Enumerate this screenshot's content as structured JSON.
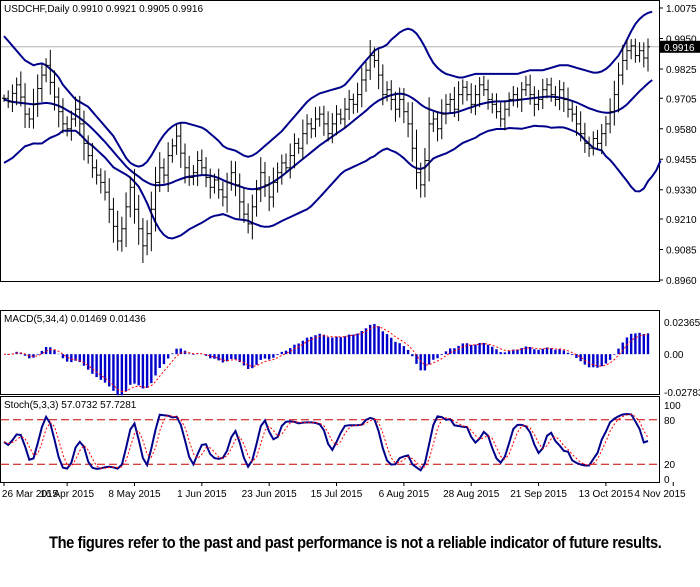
{
  "disclaimer": "The figures refer to the past and past performance is not a reliable indicator of future results.",
  "colors": {
    "bars": "#000000",
    "bands": "#00008B",
    "macd_hist": "#0000CC",
    "signal": "#FF0000",
    "grid_dash": "#CC0000",
    "current_price_bg": "#000000"
  },
  "chart_data": [
    {
      "type": "ohlc",
      "panel": "main",
      "title": "USDCHF,Daily  0.9910 0.9921 0.9905 0.9916",
      "current_price_label": "0.9916",
      "current_price": 0.9916,
      "ylim": [
        0.896,
        1.0075
      ],
      "y_ticks": [
        "1.0075",
        "0.9950",
        "0.9825",
        "0.9705",
        "0.9580",
        "0.9455",
        "0.9330",
        "0.9210",
        "0.9085",
        "0.8960"
      ],
      "y_tick_values": [
        1.0075,
        0.995,
        0.9825,
        0.9705,
        0.958,
        0.9455,
        0.933,
        0.921,
        0.9085,
        0.896
      ],
      "x_labels": [
        "26 Mar 2015",
        "16 Apr 2015",
        "8 May 2015",
        "1 Jun 2015",
        "23 Jun 2015",
        "15 Jul 2015",
        "6 Aug 2015",
        "28 Aug 2015",
        "21 Sep 2015",
        "13 Oct 2015",
        "4 Nov 2015"
      ],
      "x_label_index": [
        0,
        15,
        31,
        47,
        63,
        79,
        95,
        111,
        127,
        143,
        159
      ],
      "close": [
        0.9705,
        0.969,
        0.9725,
        0.976,
        0.971,
        0.964,
        0.962,
        0.968,
        0.9745,
        0.98,
        0.984,
        0.977,
        0.971,
        0.965,
        0.96,
        0.958,
        0.962,
        0.966,
        0.96,
        0.952,
        0.947,
        0.942,
        0.939,
        0.936,
        0.932,
        0.925,
        0.918,
        0.912,
        0.917,
        0.926,
        0.934,
        0.925,
        0.917,
        0.91,
        0.915,
        0.925,
        0.936,
        0.942,
        0.939,
        0.947,
        0.951,
        0.955,
        0.948,
        0.942,
        0.938,
        0.94,
        0.945,
        0.942,
        0.938,
        0.934,
        0.937,
        0.933,
        0.93,
        0.936,
        0.94,
        0.935,
        0.928,
        0.923,
        0.919,
        0.926,
        0.933,
        0.94,
        0.935,
        0.93,
        0.936,
        0.94,
        0.944,
        0.942,
        0.947,
        0.952,
        0.95,
        0.956,
        0.96,
        0.958,
        0.962,
        0.964,
        0.96,
        0.956,
        0.96,
        0.964,
        0.962,
        0.966,
        0.97,
        0.968,
        0.972,
        0.978,
        0.982,
        0.988,
        0.986,
        0.98,
        0.972,
        0.974,
        0.97,
        0.966,
        0.97,
        0.965,
        0.96,
        0.95,
        0.94,
        0.935,
        0.945,
        0.96,
        0.962,
        0.958,
        0.964,
        0.968,
        0.97,
        0.966,
        0.972,
        0.975,
        0.972,
        0.968,
        0.972,
        0.976,
        0.974,
        0.97,
        0.968,
        0.965,
        0.962,
        0.966,
        0.97,
        0.972,
        0.97,
        0.974,
        0.976,
        0.972,
        0.968,
        0.97,
        0.974,
        0.976,
        0.972,
        0.97,
        0.974,
        0.97,
        0.966,
        0.964,
        0.96,
        0.956,
        0.952,
        0.95,
        0.954,
        0.952,
        0.956,
        0.96,
        0.965,
        0.972,
        0.98,
        0.986,
        0.99,
        0.992,
        0.988,
        0.99,
        0.987,
        0.9916
      ],
      "bands_upper": [
        0.996,
        0.994,
        0.992,
        0.99,
        0.988,
        0.986,
        0.985,
        0.984,
        0.9845,
        0.9848,
        0.984,
        0.9825,
        0.981,
        0.979,
        0.976,
        0.974,
        0.972,
        0.97,
        0.969,
        0.968,
        0.967,
        0.965,
        0.963,
        0.961,
        0.959,
        0.957,
        0.955,
        0.952,
        0.949,
        0.946,
        0.944,
        0.943,
        0.9425,
        0.943,
        0.9445,
        0.947,
        0.95,
        0.953,
        0.9555,
        0.9575,
        0.959,
        0.96,
        0.9605,
        0.9605,
        0.96,
        0.9595,
        0.959,
        0.9585,
        0.9575,
        0.956,
        0.9545,
        0.953,
        0.951,
        0.95,
        0.9495,
        0.949,
        0.948,
        0.947,
        0.9465,
        0.947,
        0.948,
        0.9495,
        0.951,
        0.9525,
        0.954,
        0.9555,
        0.957,
        0.959,
        0.961,
        0.963,
        0.965,
        0.967,
        0.969,
        0.9705,
        0.9715,
        0.9725,
        0.973,
        0.9735,
        0.974,
        0.9745,
        0.975,
        0.976,
        0.978,
        0.98,
        0.982,
        0.984,
        0.986,
        0.988,
        0.99,
        0.991,
        0.9915,
        0.9925,
        0.9945,
        0.996,
        0.9975,
        0.9985,
        0.999,
        0.9985,
        0.997,
        0.9945,
        0.9915,
        0.988,
        0.985,
        0.983,
        0.9815,
        0.9805,
        0.98,
        0.9795,
        0.979,
        0.979,
        0.9795,
        0.98,
        0.9805,
        0.9805,
        0.9805,
        0.9805,
        0.9805,
        0.9805,
        0.9805,
        0.9805,
        0.9805,
        0.9805,
        0.9805,
        0.981,
        0.9815,
        0.982,
        0.982,
        0.982,
        0.982,
        0.9825,
        0.983,
        0.9835,
        0.984,
        0.984,
        0.984,
        0.9835,
        0.983,
        0.9825,
        0.982,
        0.9815,
        0.981,
        0.981,
        0.9815,
        0.9825,
        0.984,
        0.986,
        0.988,
        0.991,
        0.9945,
        0.998,
        1.001,
        1.003,
        1.0045,
        1.0055,
        1.006
      ],
      "bands_middle": [
        0.97,
        0.9695,
        0.969,
        0.9688,
        0.9686,
        0.9684,
        0.9682,
        0.968,
        0.9682,
        0.9684,
        0.9686,
        0.9684,
        0.968,
        0.9674,
        0.9666,
        0.9656,
        0.9646,
        0.9636,
        0.9624,
        0.961,
        0.9596,
        0.958,
        0.9562,
        0.9544,
        0.9526,
        0.9506,
        0.9486,
        0.9466,
        0.9446,
        0.9426,
        0.941,
        0.9396,
        0.9384,
        0.937,
        0.936,
        0.9352,
        0.9348,
        0.9348,
        0.935,
        0.9354,
        0.936,
        0.9368,
        0.9374,
        0.938,
        0.9384,
        0.9386,
        0.9388,
        0.939,
        0.939,
        0.9388,
        0.9384,
        0.9378,
        0.937,
        0.9362,
        0.9356,
        0.935,
        0.9344,
        0.9338,
        0.9334,
        0.9332,
        0.9334,
        0.9338,
        0.9344,
        0.9352,
        0.9362,
        0.9374,
        0.9386,
        0.94,
        0.9414,
        0.9428,
        0.9442,
        0.9456,
        0.947,
        0.9484,
        0.9498,
        0.9512,
        0.9524,
        0.9536,
        0.9548,
        0.956,
        0.9572,
        0.9584,
        0.9598,
        0.9612,
        0.9626,
        0.964,
        0.9654,
        0.967,
        0.9684,
        0.9696,
        0.9704,
        0.9712,
        0.9718,
        0.9722,
        0.9724,
        0.9722,
        0.9716,
        0.9706,
        0.9694,
        0.968,
        0.9668,
        0.966,
        0.9654,
        0.9648,
        0.9644,
        0.9642,
        0.9644,
        0.9646,
        0.965,
        0.9656,
        0.9662,
        0.9668,
        0.9674,
        0.968,
        0.9684,
        0.9688,
        0.969,
        0.9692,
        0.9692,
        0.9692,
        0.9694,
        0.9696,
        0.9698,
        0.97,
        0.9702,
        0.9704,
        0.9706,
        0.9708,
        0.971,
        0.9712,
        0.9712,
        0.971,
        0.9708,
        0.9704,
        0.97,
        0.9694,
        0.9688,
        0.968,
        0.9672,
        0.9664,
        0.9658,
        0.9652,
        0.9648,
        0.9646,
        0.9646,
        0.965,
        0.9656,
        0.9666,
        0.968,
        0.9698,
        0.9716,
        0.9734,
        0.975,
        0.9766,
        0.978
      ],
      "bands_lower": [
        0.944,
        0.945,
        0.946,
        0.9476,
        0.9492,
        0.9508,
        0.9514,
        0.952,
        0.9519,
        0.952,
        0.9532,
        0.9543,
        0.955,
        0.9558,
        0.9572,
        0.9572,
        0.9572,
        0.9572,
        0.9558,
        0.954,
        0.9522,
        0.951,
        0.9494,
        0.9478,
        0.9462,
        0.9442,
        0.9422,
        0.9412,
        0.9402,
        0.9392,
        0.938,
        0.9362,
        0.9343,
        0.931,
        0.9275,
        0.9234,
        0.9196,
        0.9166,
        0.9145,
        0.9133,
        0.913,
        0.9136,
        0.9143,
        0.9155,
        0.9168,
        0.9177,
        0.9186,
        0.9195,
        0.9205,
        0.9216,
        0.9223,
        0.9226,
        0.923,
        0.9224,
        0.9217,
        0.921,
        0.9208,
        0.9206,
        0.9203,
        0.9194,
        0.9188,
        0.9181,
        0.9178,
        0.9179,
        0.9184,
        0.9193,
        0.9202,
        0.921,
        0.9218,
        0.9226,
        0.9234,
        0.9242,
        0.925,
        0.9263,
        0.9281,
        0.9299,
        0.9318,
        0.9337,
        0.9356,
        0.9375,
        0.9394,
        0.9408,
        0.9416,
        0.9424,
        0.9432,
        0.944,
        0.9448,
        0.946,
        0.9468,
        0.9482,
        0.9493,
        0.9499,
        0.9491,
        0.9484,
        0.9473,
        0.9459,
        0.9442,
        0.9427,
        0.9418,
        0.9415,
        0.9421,
        0.944,
        0.9458,
        0.9466,
        0.9473,
        0.9479,
        0.9488,
        0.9497,
        0.951,
        0.9522,
        0.9529,
        0.9536,
        0.9543,
        0.9555,
        0.9563,
        0.9571,
        0.9575,
        0.9579,
        0.9579,
        0.9579,
        0.9583,
        0.9582,
        0.9581,
        0.958,
        0.9584,
        0.9588,
        0.9592,
        0.9591,
        0.959,
        0.9589,
        0.9584,
        0.9585,
        0.9586,
        0.9585,
        0.958,
        0.9573,
        0.9566,
        0.9553,
        0.9534,
        0.9518,
        0.9501,
        0.9496,
        0.9491,
        0.9467,
        0.9452,
        0.9432,
        0.941,
        0.9388,
        0.9366,
        0.9342,
        0.9324,
        0.9323,
        0.9335,
        0.9365,
        0.9385,
        0.941,
        0.945
      ]
    },
    {
      "type": "bar",
      "panel": "macd",
      "title": "MACD(5,34,4) 0.01469 0.01436",
      "ylim": [
        -0.02783,
        0.02365
      ],
      "y_ticks": [
        "0.02365",
        "0.00",
        "-0.02783"
      ],
      "macd_pattern": "histogram with signal line"
    },
    {
      "type": "line",
      "panel": "stoch",
      "title": "Stoch(5,3,3) 57.0732 57.7281",
      "ylim": [
        0,
        100
      ],
      "y_ticks": [
        "100",
        "80",
        "20",
        "0"
      ],
      "levels": [
        80,
        20
      ]
    }
  ]
}
